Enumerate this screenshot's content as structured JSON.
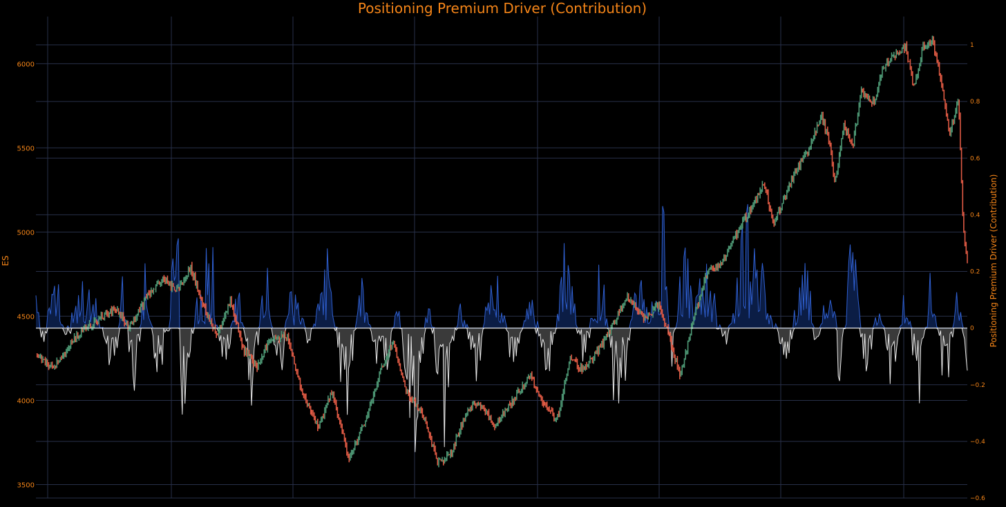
{
  "chart_data": {
    "type": "candlestick_with_area",
    "title": "Positioning Premium Driver (Contribution)",
    "y_left": {
      "label": "ES",
      "ticks": [
        3500,
        4000,
        4500,
        5000,
        5500,
        6000
      ],
      "range": [
        3420,
        6280
      ]
    },
    "y_right": {
      "label": "Positioning Premium Driver (Contribution)",
      "ticks": [
        -0.6,
        -0.4,
        -0.2,
        0,
        0.2,
        0.4,
        0.6,
        0.8,
        1
      ],
      "range": [
        -0.6,
        1.1
      ]
    },
    "grid": true,
    "colors": {
      "background": "#000000",
      "up": "#4e9a76",
      "down": "#e05a44",
      "positive_line": "#2f5fd0",
      "positive_fill": "#0b1d45",
      "negative_line": "#e8e8e8",
      "negative_fill": "#3a3a3a",
      "text": "#f58518",
      "grid": "#28304a"
    },
    "price_anchors": [
      [
        0,
        4270
      ],
      [
        0.02,
        4200
      ],
      [
        0.045,
        4370
      ],
      [
        0.07,
        4480
      ],
      [
        0.09,
        4540
      ],
      [
        0.105,
        4430
      ],
      [
        0.13,
        4650
      ],
      [
        0.145,
        4720
      ],
      [
        0.16,
        4650
      ],
      [
        0.175,
        4790
      ],
      [
        0.19,
        4560
      ],
      [
        0.205,
        4390
      ],
      [
        0.22,
        4600
      ],
      [
        0.235,
        4300
      ],
      [
        0.25,
        4200
      ],
      [
        0.265,
        4360
      ],
      [
        0.285,
        4380
      ],
      [
        0.3,
        4080
      ],
      [
        0.32,
        3830
      ],
      [
        0.335,
        4050
      ],
      [
        0.355,
        3650
      ],
      [
        0.375,
        3900
      ],
      [
        0.39,
        4180
      ],
      [
        0.405,
        4350
      ],
      [
        0.42,
        4050
      ],
      [
        0.44,
        3900
      ],
      [
        0.455,
        3630
      ],
      [
        0.47,
        3680
      ],
      [
        0.485,
        3890
      ],
      [
        0.5,
        4000
      ],
      [
        0.52,
        3850
      ],
      [
        0.54,
        4000
      ],
      [
        0.56,
        4150
      ],
      [
        0.575,
        3980
      ],
      [
        0.59,
        3880
      ],
      [
        0.605,
        4250
      ],
      [
        0.62,
        4180
      ],
      [
        0.64,
        4320
      ],
      [
        0.655,
        4460
      ],
      [
        0.67,
        4620
      ],
      [
        0.69,
        4480
      ],
      [
        0.705,
        4570
      ],
      [
        0.715,
        4420
      ],
      [
        0.73,
        4140
      ],
      [
        0.745,
        4480
      ],
      [
        0.76,
        4760
      ],
      [
        0.775,
        4800
      ],
      [
        0.79,
        4950
      ],
      [
        0.8,
        5050
      ],
      [
        0.815,
        5180
      ],
      [
        0.825,
        5290
      ],
      [
        0.835,
        5050
      ],
      [
        0.845,
        5160
      ],
      [
        0.86,
        5360
      ],
      [
        0.875,
        5480
      ],
      [
        0.89,
        5700
      ],
      [
        0.9,
        5500
      ],
      [
        0.905,
        5280
      ],
      [
        0.915,
        5640
      ],
      [
        0.925,
        5500
      ],
      [
        0.935,
        5830
      ],
      [
        0.95,
        5770
      ],
      [
        0.96,
        5980
      ],
      [
        0.97,
        6050
      ],
      [
        0.985,
        6100
      ],
      [
        0.995,
        5850
      ],
      [
        1.005,
        6100
      ],
      [
        1.015,
        6150
      ],
      [
        1.025,
        5920
      ],
      [
        1.035,
        5580
      ],
      [
        1.045,
        5790
      ],
      [
        1.05,
        5050
      ],
      [
        1.055,
        4820
      ]
    ],
    "driver_anchors": [
      [
        0.0,
        0.12
      ],
      [
        0.01,
        -0.1
      ],
      [
        0.02,
        0.3
      ],
      [
        0.035,
        -0.08
      ],
      [
        0.05,
        0.2
      ],
      [
        0.07,
        0.07
      ],
      [
        0.09,
        -0.25
      ],
      [
        0.1,
        0.36
      ],
      [
        0.11,
        -0.48
      ],
      [
        0.125,
        0.38
      ],
      [
        0.135,
        -0.18
      ],
      [
        0.15,
        -0.05
      ],
      [
        0.16,
        0.62
      ],
      [
        0.165,
        -0.46
      ],
      [
        0.18,
        0.08
      ],
      [
        0.2,
        0.4
      ],
      [
        0.21,
        -0.3
      ],
      [
        0.23,
        0.22
      ],
      [
        0.245,
        -0.34
      ],
      [
        0.26,
        0.3
      ],
      [
        0.275,
        -0.25
      ],
      [
        0.29,
        0.2
      ],
      [
        0.31,
        -0.1
      ],
      [
        0.33,
        0.32
      ],
      [
        0.35,
        -0.4
      ],
      [
        0.37,
        0.25
      ],
      [
        0.39,
        -0.3
      ],
      [
        0.41,
        0.1
      ],
      [
        0.43,
        -0.55
      ],
      [
        0.445,
        0.2
      ],
      [
        0.46,
        -0.5
      ],
      [
        0.48,
        0.15
      ],
      [
        0.5,
        -0.2
      ],
      [
        0.52,
        0.35
      ],
      [
        0.54,
        -0.25
      ],
      [
        0.56,
        0.2
      ],
      [
        0.58,
        -0.3
      ],
      [
        0.6,
        0.4
      ],
      [
        0.62,
        -0.18
      ],
      [
        0.64,
        0.28
      ],
      [
        0.66,
        -0.48
      ],
      [
        0.68,
        0.22
      ],
      [
        0.7,
        0.06
      ],
      [
        0.71,
        0.58
      ],
      [
        0.72,
        -0.2
      ],
      [
        0.735,
        0.52
      ],
      [
        0.745,
        0.1
      ],
      [
        0.76,
        0.3
      ],
      [
        0.78,
        -0.12
      ],
      [
        0.8,
        0.4
      ],
      [
        0.81,
        0.48
      ],
      [
        0.83,
        0.12
      ],
      [
        0.85,
        -0.2
      ],
      [
        0.87,
        0.36
      ],
      [
        0.885,
        -0.12
      ],
      [
        0.9,
        0.52
      ],
      [
        0.91,
        -0.3
      ],
      [
        0.925,
        0.46
      ],
      [
        0.94,
        -0.28
      ],
      [
        0.955,
        0.16
      ],
      [
        0.97,
        -0.3
      ],
      [
        0.985,
        0.24
      ],
      [
        1.0,
        -0.36
      ],
      [
        1.015,
        0.3
      ],
      [
        1.03,
        -0.32
      ],
      [
        1.045,
        0.24
      ],
      [
        1.055,
        -0.34
      ]
    ]
  }
}
